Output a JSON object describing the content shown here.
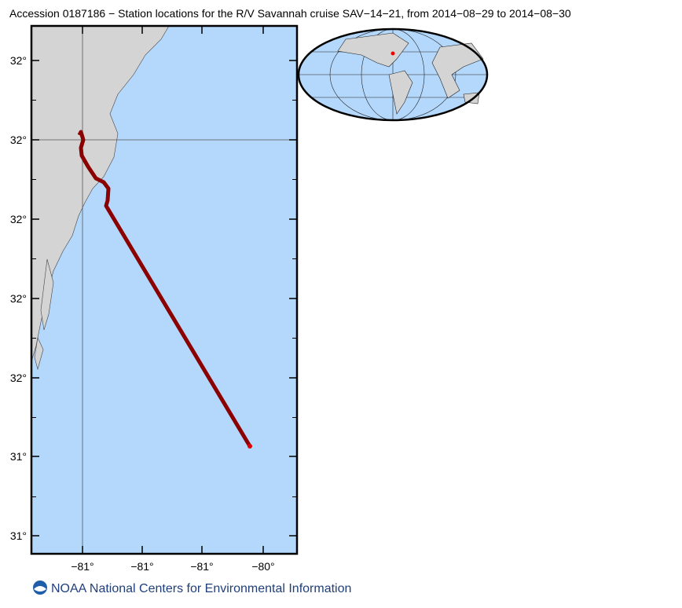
{
  "header": {
    "title": "Accession 0187186 − Station locations for the R/V Savannah cruise SAV−14−21, from 2014−08−29 to 2014−08−30"
  },
  "map": {
    "y_labels": [
      "32°",
      "32°",
      "32°",
      "32°",
      "32°",
      "31°",
      "31°"
    ],
    "x_labels": [
      "−81°",
      "−81°",
      "−81°",
      "−80°"
    ]
  },
  "footer": {
    "text": "NOAA National Centers for Environmental Information"
  }
}
